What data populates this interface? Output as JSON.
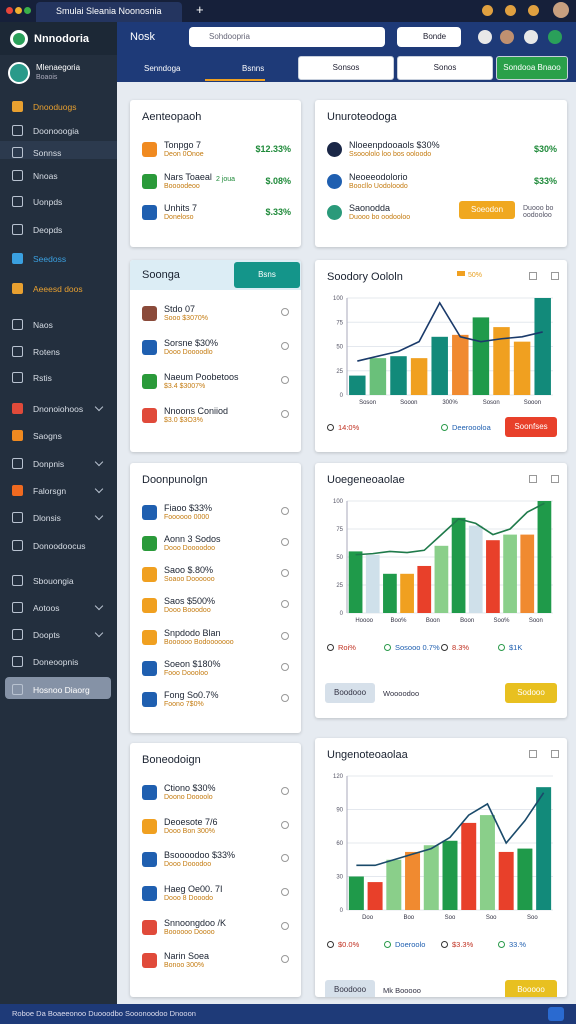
{
  "browser": {
    "tab": "Smulai Sleania Noonosnia",
    "new_tab": "+"
  },
  "sidebar": {
    "brand": "Nnnodoria",
    "user": {
      "name": "Mlenaegoria",
      "role": "Boaois"
    },
    "items": [
      {
        "label": "Dnooduogs",
        "color": "#e8a030"
      },
      {
        "label": "Doonooogia"
      },
      {
        "label": "Sonnss",
        "active": true
      },
      {
        "label": "Nnoas"
      },
      {
        "label": "Uonpds"
      },
      {
        "label": "Deopds"
      },
      {
        "label": "Seedoss",
        "color": "#3aa0e0"
      },
      {
        "label": "Aeeesd doos",
        "color": "#e8a030"
      },
      {
        "label": "Naos"
      },
      {
        "label": "Rotens"
      },
      {
        "label": "Rstis"
      },
      {
        "label": "Dnonoiohoos",
        "color": "#e04a3a",
        "chevron": true
      },
      {
        "label": "Saogns",
        "color": "#f08a20"
      },
      {
        "label": "Donpnis",
        "chevron": true
      },
      {
        "label": "Falorsgn",
        "color": "#f06a20",
        "chevron": true
      },
      {
        "label": "Dlonsis",
        "chevron": true
      },
      {
        "label": "Donoodoocus"
      },
      {
        "label": "Sbouongia"
      },
      {
        "label": "Aotoos",
        "chevron": true
      },
      {
        "label": "Doopts",
        "chevron": true
      },
      {
        "label": "Doneoopnis"
      },
      {
        "label": "Hosnoo Diaorg",
        "selected": true
      }
    ]
  },
  "header": {
    "title": "Nosk",
    "search": "Sohdoopria",
    "account": "Bonde"
  },
  "toolbar": {
    "tabs": [
      "Senndoga",
      "Bsnns"
    ],
    "buttons": [
      "Sonsos",
      "Sonos",
      "Sondooa Bnaoo"
    ]
  },
  "panels": [
    {
      "title": "Aenteopaoh",
      "rows": [
        {
          "title": "Tonpgo 7",
          "sub": "Deon 0Onoe",
          "value": "$12.33%",
          "color": "#f08a20"
        },
        {
          "title": "Nars Toaeal",
          "sub": "Boooodeoo",
          "badge": "2 joua",
          "value": "$.08%",
          "color": "#2a9a3a"
        },
        {
          "title": "Unhits 7",
          "sub": "Doneloso",
          "value": "$.33%",
          "color": "#1f5fb0"
        }
      ]
    },
    {
      "title": "Unuroteodoga",
      "rows": [
        {
          "title": "Nloeenpdooaols $30%",
          "sub": "Ssooololo loo bos ooloodo",
          "value": "$30%",
          "color": "#1a2747"
        },
        {
          "title": "Neoeeodolorio",
          "sub": "Boocllo Uodoloodo",
          "value": "$33%",
          "color": "#1f5fb0"
        },
        {
          "title": "Saonodda",
          "sub": "Duooo bo oodooloo",
          "button": "Soeodon",
          "color": "#2a9a7a"
        }
      ]
    },
    {
      "title": "Soonga",
      "button": "Bsns",
      "rows": [
        {
          "title": "Stdo 07",
          "sub": "Sooo $3070%",
          "color": "#8a4a3a"
        },
        {
          "title": "Sorsne $30%",
          "sub": "Dooo Doooodlo",
          "color": "#1f5fb0"
        },
        {
          "title": "Naeum Poobetoos",
          "sub": "$3.4 $3007%",
          "color": "#2a9a3a"
        },
        {
          "title": "Nnoons Coniiod",
          "sub": "$3.0 $3O3%",
          "color": "#e04a3a"
        }
      ]
    },
    {
      "title": "Soodory Oololn",
      "chart": {
        "legend": [
          {
            "label": "50%",
            "color": "#f0a020"
          }
        ],
        "ylim": [
          0,
          100
        ],
        "yticks": [
          0,
          25,
          50,
          75,
          100
        ],
        "categories": [
          "Soson",
          "Sooon",
          "300%",
          "Soson",
          "Sooon"
        ],
        "bars": [
          {
            "value": 20,
            "color": "#128a7a"
          },
          {
            "value": 38,
            "color": "#6ac07a"
          },
          {
            "value": 40,
            "color": "#128a7a"
          },
          {
            "value": 38,
            "color": "#f0a020"
          },
          {
            "value": 60,
            "color": "#128a7a"
          },
          {
            "value": 62,
            "color": "#f08a30"
          },
          {
            "value": 80,
            "color": "#1f9a4a"
          },
          {
            "value": 70,
            "color": "#f0a020"
          },
          {
            "value": 55,
            "color": "#f0a020"
          },
          {
            "value": 100,
            "color": "#128a7a"
          }
        ],
        "line": [
          35,
          40,
          45,
          55,
          95,
          60,
          55,
          58,
          60,
          65
        ],
        "line_color": "#1a3a6a"
      },
      "footer": [
        "14:0%",
        "Deeroooloa"
      ],
      "actions": [
        {
          "label": "Soonfses",
          "color": "#e8402a"
        }
      ]
    },
    {
      "title": "Doonpunolgn",
      "rows": [
        {
          "title": "Fiaoo $33%",
          "sub": "Foooooo 0000",
          "color": "#1f5fb0"
        },
        {
          "title": "Aonn 3 Sodos",
          "sub": "Dooo Doooodoo",
          "color": "#2a9a3a"
        },
        {
          "title": "Saoo $.80%",
          "sub": "Soaoo Doooooo",
          "color": "#f0a020"
        },
        {
          "title": "Saos $500%",
          "sub": "Dooo Booodoo",
          "color": "#f0a020"
        },
        {
          "title": "Snpdodo Blan",
          "sub": "Boooooo Bodooooooo",
          "color": "#f0a020"
        },
        {
          "title": "Soeon $180%",
          "sub": "Fooo Doooloo",
          "color": "#1f5fb0"
        },
        {
          "title": "Fong So0.7%",
          "sub": "Foono 7$0%",
          "color": "#1f5fb0"
        }
      ]
    },
    {
      "title": "Uoegeneoaolae",
      "chart": {
        "legend": [],
        "ylim": [
          0,
          100
        ],
        "yticks": [
          0,
          25,
          50,
          75,
          100
        ],
        "categories": [
          "Hoooo",
          "Boo%",
          "Boon",
          "Boon",
          "Soo%",
          "Soon"
        ],
        "bars": [
          {
            "value": 55,
            "color": "#1f9a4a"
          },
          {
            "value": 52,
            "color": "#cfe0ea"
          },
          {
            "value": 35,
            "color": "#1f9a4a"
          },
          {
            "value": 35,
            "color": "#f0a020"
          },
          {
            "value": 42,
            "color": "#e8402a"
          },
          {
            "value": 60,
            "color": "#8acf8a"
          },
          {
            "value": 85,
            "color": "#1f9a4a"
          },
          {
            "value": 78,
            "color": "#cfe0ea"
          },
          {
            "value": 65,
            "color": "#e8402a"
          },
          {
            "value": 70,
            "color": "#8acf8a"
          },
          {
            "value": 70,
            "color": "#f08a30"
          },
          {
            "value": 100,
            "color": "#1f9a4a"
          }
        ],
        "line": [
          52,
          53,
          55,
          54,
          56,
          70,
          84,
          80,
          70,
          75,
          90,
          98
        ],
        "line_color": "#1f7a4a"
      },
      "footer": [
        "Roi%",
        "Sosooo 0.7%",
        "8.3%",
        "$1K"
      ],
      "note": "Boodooo",
      "subnote": "Woooodoo",
      "actions": [
        {
          "label": "Sodooo",
          "color": "#e8c020"
        }
      ]
    },
    {
      "title": "Boneodoign",
      "rows": [
        {
          "title": "Ctiono $30%",
          "sub": "Doono Doooolo",
          "color": "#1f5fb0"
        },
        {
          "title": "Deoesote 7/6",
          "sub": "Dooo Bon 300%",
          "color": "#f0a020"
        },
        {
          "title": "Bsoooodoo $33%",
          "sub": "Dooo Dooodoo",
          "color": "#1f5fb0"
        },
        {
          "title": "Haeg Oe00. 7I",
          "sub": "Dooo 8 Dooodo",
          "color": "#1f5fb0"
        },
        {
          "title": "Snnoongdoo /K",
          "sub": "Boooooo Doooo",
          "color": "#e04a3a"
        },
        {
          "title": "Narin Soea",
          "sub": "Bonoo 300%",
          "color": "#e04a3a"
        }
      ]
    },
    {
      "title": "Ungenoteoaolaa",
      "chart": {
        "legend": [],
        "ylim": [
          0,
          120
        ],
        "yticks": [
          0,
          30,
          60,
          90,
          120
        ],
        "categories": [
          "Doo",
          "Boo",
          "Soo",
          "Soo",
          "Soo"
        ],
        "bars": [
          {
            "value": 30,
            "color": "#1f9a4a"
          },
          {
            "value": 25,
            "color": "#e8402a"
          },
          {
            "value": 45,
            "color": "#8acf8a"
          },
          {
            "value": 52,
            "color": "#f08a30"
          },
          {
            "value": 58,
            "color": "#8acf8a"
          },
          {
            "value": 62,
            "color": "#1f9a4a"
          },
          {
            "value": 78,
            "color": "#e8402a"
          },
          {
            "value": 85,
            "color": "#8acf8a"
          },
          {
            "value": 52,
            "color": "#e8402a"
          },
          {
            "value": 55,
            "color": "#1f9a4a"
          },
          {
            "value": 110,
            "color": "#128a7a"
          }
        ],
        "line": [
          40,
          40,
          45,
          50,
          55,
          65,
          85,
          95,
          60,
          80,
          105
        ],
        "line_color": "#1a4a6a"
      },
      "footer": [
        "$0.0%",
        "Doeroolo",
        "$3.3%",
        "33.%"
      ],
      "note": "Boodooo",
      "subnote": "Mk Booooo",
      "actions": [
        {
          "label": "Booooo",
          "color": "#e8c020"
        }
      ]
    }
  ],
  "footer": "Roboe Da Boaeeonoo  Duooodbo Sooonoodoo Dnooon"
}
